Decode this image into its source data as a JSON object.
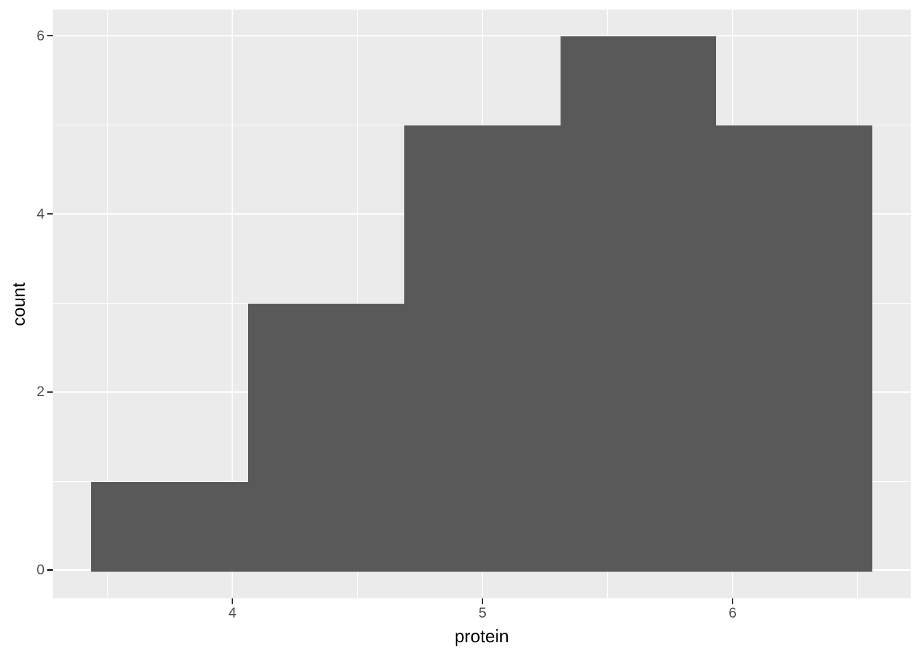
{
  "chart_data": {
    "type": "histogram",
    "title": "",
    "xlabel": "protein",
    "ylabel": "count",
    "bins": {
      "edges": [
        3.436,
        4.063,
        4.688,
        5.311,
        5.934,
        6.558
      ],
      "counts": [
        1,
        3,
        5,
        6,
        5
      ]
    },
    "x_axis": {
      "major_ticks": [
        4,
        5,
        6
      ],
      "minor_gridlines": [
        3.5,
        4.5,
        5.5,
        6.5
      ],
      "range": [
        3.282,
        6.712
      ]
    },
    "y_axis": {
      "major_ticks": [
        0,
        2,
        4,
        6
      ],
      "minor_gridlines": [
        1,
        3,
        5
      ],
      "range": [
        -0.308,
        6.304
      ]
    },
    "grid": "major and minor, white on grey panel",
    "legend": "none",
    "theme": "ggplot2-grey"
  },
  "style": {
    "panel_bg": "#EBEBEB",
    "bar_fill": "#595959",
    "gridline_color": "#FFFFFF",
    "tick_mark_color": "#333333",
    "tick_label_color": "#4D4D4D",
    "axis_title_color": "#000000",
    "figure_bg": "#FFFFFF"
  }
}
